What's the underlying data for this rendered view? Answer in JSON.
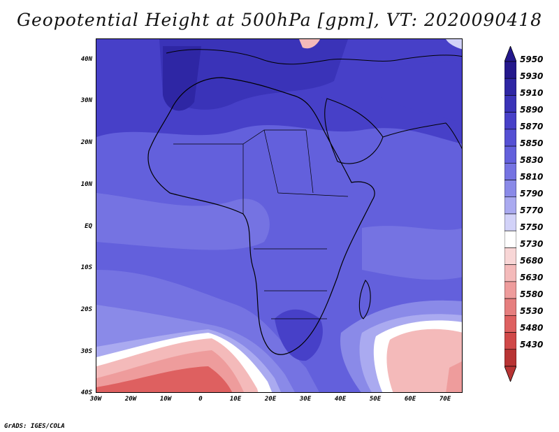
{
  "title": "Geopotential Height at 500hPa [gpm], VT: 2020090418",
  "credit": "GrADS: IGES/COLA",
  "y_axis_labels": [
    "40N",
    "30N",
    "20N",
    "10N",
    "EQ",
    "10S",
    "20S",
    "30S",
    "40S"
  ],
  "x_axis_labels": [
    "30W",
    "20W",
    "10W",
    "0",
    "10E",
    "20E",
    "30E",
    "40E",
    "50E",
    "60E",
    "70E"
  ],
  "colorbar": {
    "levels": [
      "5950",
      "5930",
      "5910",
      "5890",
      "5870",
      "5850",
      "5830",
      "5810",
      "5790",
      "5770",
      "5750",
      "5730",
      "5680",
      "5630",
      "5580",
      "5530",
      "5480",
      "5430"
    ],
    "colors": [
      "#24188c",
      "#2e26a4",
      "#3a33b8",
      "#4740c8",
      "#5550d4",
      "#6360dc",
      "#7573e2",
      "#8a8ae8",
      "#aaaaf0",
      "#d2d2f8",
      "#ffffff",
      "#f8d6d6",
      "#f4baba",
      "#ee9c9c",
      "#e67e7e",
      "#de6060",
      "#d04848",
      "#b83434"
    ]
  }
}
